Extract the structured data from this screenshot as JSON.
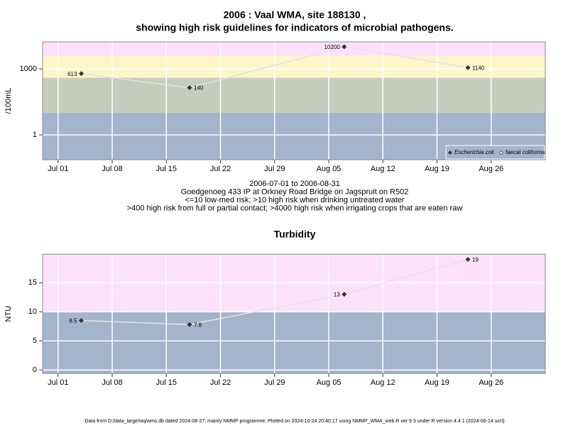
{
  "chart_data": [
    {
      "type": "line",
      "title": [
        "2006 : Vaal WMA, site 188130 ,",
        "showing high risk guidelines for indicators of microbial pathogens."
      ],
      "y_label": "/100mL",
      "log_scale": true,
      "x": [
        "2006-07-04",
        "2006-07-18",
        "2006-08-07",
        "2006-08-23"
      ],
      "series": [
        {
          "name": "Escherichia coli",
          "color": "#333333",
          "values": [
            613,
            140,
            10200,
            1140
          ]
        },
        {
          "name": "faecal coliforms",
          "color": "#333333",
          "values": [
            null,
            null,
            null,
            null
          ]
        }
      ],
      "xlim": [
        "2006-06-29",
        "2006-09-02"
      ],
      "xticks": [
        {
          "value": "2006-07-01",
          "label": "Jul 01"
        },
        {
          "value": "2006-07-08",
          "label": "Jul 08"
        },
        {
          "value": "2006-07-15",
          "label": "Jul 15"
        },
        {
          "value": "2006-07-22",
          "label": "Jul 22"
        },
        {
          "value": "2006-07-29",
          "label": "Jul 29"
        },
        {
          "value": "2006-08-05",
          "label": "Aug 05"
        },
        {
          "value": "2006-08-12",
          "label": "Aug 12"
        },
        {
          "value": "2006-08-19",
          "label": "Aug 19"
        },
        {
          "value": "2006-08-26",
          "label": "Aug 26"
        }
      ],
      "ylim": [
        0.074,
        17000
      ],
      "yticks": [
        1,
        1000
      ],
      "thresholds": [
        10,
        400,
        4000
      ],
      "band_colors": [
        "#a3b5cd",
        "#c6cdbf",
        "#fdf6c9",
        "#fde1fb"
      ],
      "grid": true,
      "legend": "bottom-right",
      "notes": [
        "2006-07-01 to 2006-08-31",
        "Goedgenoeg 433 IP at Orkney Road Bridge on Jagspruit on R502",
        "<=10 low-med risk; >10 high risk when drinking untreated water",
        ">400 high risk from full or partial contact; >4000 high risk when irrigating crops that are eaten raw"
      ]
    },
    {
      "type": "line",
      "title": [
        "Turbidity"
      ],
      "y_label": "NTU",
      "log_scale": false,
      "x": [
        "2006-07-04",
        "2006-07-18",
        "2006-08-07",
        "2006-08-23"
      ],
      "series": [
        {
          "name": "Turbidity",
          "color": "#333333",
          "values": [
            8.5,
            7.8,
            13,
            19
          ]
        }
      ],
      "xlim": [
        "2006-06-29",
        "2006-09-02"
      ],
      "xticks": [
        {
          "value": "2006-07-01",
          "label": "Jul 01"
        },
        {
          "value": "2006-07-08",
          "label": "Jul 08"
        },
        {
          "value": "2006-07-15",
          "label": "Jul 15"
        },
        {
          "value": "2006-07-22",
          "label": "Jul 22"
        },
        {
          "value": "2006-07-29",
          "label": "Jul 29"
        },
        {
          "value": "2006-08-05",
          "label": "Aug 05"
        },
        {
          "value": "2006-08-12",
          "label": "Aug 12"
        },
        {
          "value": "2006-08-19",
          "label": "Aug 19"
        },
        {
          "value": "2006-08-26",
          "label": "Aug 26"
        }
      ],
      "ylim": [
        -0.6,
        19.9
      ],
      "yticks": [
        0,
        5,
        10,
        15
      ],
      "thresholds": [
        10
      ],
      "band_colors": [
        "#a3b5cd",
        "#fde1fb"
      ],
      "grid": true
    }
  ],
  "footer": "Data from D:/data_large/wq/wms.db dated 2024-08-27, mainly NMMP programme. Plotted on 2024-10-24 20:40:17 using NMMP_WMA_web.R ver 9.3 under R version 4.4.1 (2024-06-14 ucrt)"
}
